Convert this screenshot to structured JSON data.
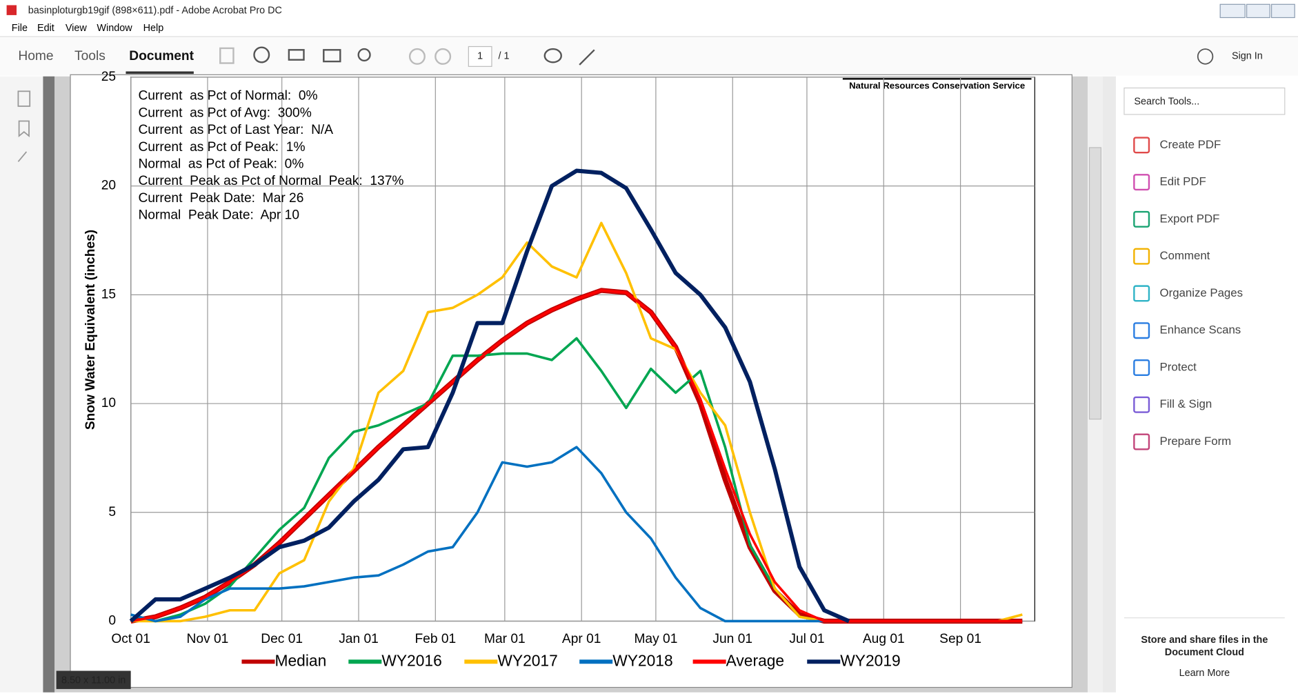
{
  "window": {
    "title": "basinploturgb19gif (898×611).pdf - Adobe Acrobat Pro DC",
    "menu": [
      "File",
      "Edit",
      "View",
      "Window",
      "Help"
    ],
    "tabs": [
      "Home",
      "Tools",
      "Document"
    ],
    "page_number": "1",
    "page_total": "/ 1",
    "sign_in": "Sign In",
    "search": "Search Tools...",
    "tools": [
      "Create PDF",
      "Edit PDF",
      "Export PDF",
      "Comment",
      "Organize Pages",
      "Enhance Scans",
      "Protect",
      "Fill & Sign",
      "Prepare Form"
    ],
    "cloud_text": [
      "Store and share files in the",
      "Document Cloud"
    ],
    "learn_more": "Learn More",
    "page_size": "8.50 x 11.00 in"
  },
  "chart_data": {
    "type": "line",
    "source": "Natural Resources Conservation Service",
    "y_label": "Snow Water Equivalent (inches)",
    "annotations": [
      "Current  as Pct of Normal:  0%",
      "Current  as Pct of Avg:  300%",
      "Current  as Pct of Last Year:  N/A",
      "Current  as Pct of Peak:  1%",
      "Normal  as Pct of Peak:  0%",
      "Current  Peak as Pct of Normal  Peak:  137%",
      "Current  Peak Date:  Mar 26",
      "Normal  Peak Date:  Apr 10"
    ],
    "x": [
      0,
      10,
      20,
      30,
      40,
      50,
      60,
      70,
      80,
      90,
      100,
      110,
      120,
      130,
      140,
      150,
      160,
      170,
      180,
      190,
      200,
      210,
      220,
      230,
      240,
      250,
      260,
      270,
      280,
      290,
      300,
      310,
      320,
      330,
      340,
      350,
      360
    ],
    "xlim": [
      0,
      365
    ],
    "xticks": [
      {
        "value": 0,
        "label": "Oct 01"
      },
      {
        "value": 31,
        "label": "Nov 01"
      },
      {
        "value": 61,
        "label": "Dec 01"
      },
      {
        "value": 92,
        "label": "Jan 01"
      },
      {
        "value": 123,
        "label": "Feb 01"
      },
      {
        "value": 151,
        "label": "Mar 01"
      },
      {
        "value": 182,
        "label": "Apr 01"
      },
      {
        "value": 212,
        "label": "May 01"
      },
      {
        "value": 243,
        "label": "Jun 01"
      },
      {
        "value": 273,
        "label": "Jul 01"
      },
      {
        "value": 304,
        "label": "Aug 01"
      },
      {
        "value": 335,
        "label": "Sep 01"
      }
    ],
    "ylim": [
      0,
      25
    ],
    "yticks": [
      0,
      5,
      10,
      15,
      20,
      25
    ],
    "grid": true,
    "series": [
      {
        "name": "Median",
        "color": "#c00000",
        "width": 6,
        "values": [
          0,
          0.2,
          0.6,
          1.1,
          1.8,
          2.6,
          3.6,
          4.7,
          5.8,
          6.9,
          8.0,
          9.0,
          10.0,
          11.0,
          12.0,
          12.9,
          13.7,
          14.3,
          14.8,
          15.2,
          15.1,
          14.2,
          12.6,
          10.0,
          6.5,
          3.4,
          1.4,
          0.3,
          0,
          0,
          0,
          0,
          0,
          0,
          0,
          0,
          0
        ]
      },
      {
        "name": "WY2016",
        "color": "#00a651",
        "width": 3,
        "values": [
          0.1,
          0,
          0.3,
          0.8,
          1.6,
          2.9,
          4.2,
          5.2,
          7.5,
          8.7,
          9.0,
          9.5,
          10.0,
          12.2,
          12.2,
          12.3,
          12.3,
          12.0,
          13.0,
          11.5,
          9.8,
          11.6,
          10.5,
          11.5,
          8.0,
          3.5,
          1.5,
          0.2,
          0,
          0,
          0,
          0,
          0,
          0,
          0,
          0,
          0
        ]
      },
      {
        "name": "WY2017",
        "color": "#ffc000",
        "width": 3,
        "values": [
          0,
          0,
          0,
          0.2,
          0.5,
          0.5,
          2.2,
          2.8,
          5.5,
          7.0,
          10.5,
          11.5,
          14.2,
          14.4,
          15.0,
          15.8,
          17.4,
          16.3,
          15.8,
          18.3,
          16.0,
          13.0,
          12.5,
          10.5,
          9.0,
          5.0,
          1.5,
          0.2,
          0,
          0,
          0,
          0,
          0,
          0,
          0,
          0,
          0.3
        ]
      },
      {
        "name": "WY2018",
        "color": "#0070c0",
        "width": 3,
        "values": [
          0.3,
          0,
          0.2,
          1.0,
          1.5,
          1.5,
          1.5,
          1.6,
          1.8,
          2.0,
          2.1,
          2.6,
          3.2,
          3.4,
          5.0,
          7.3,
          7.1,
          7.3,
          8.0,
          6.8,
          5.0,
          3.8,
          2.0,
          0.6,
          0,
          0,
          0,
          0,
          0,
          0,
          0,
          0,
          0,
          0,
          0,
          0,
          0
        ]
      },
      {
        "name": "Average",
        "color": "#ff0000",
        "width": 3,
        "values": [
          0,
          0.2,
          0.6,
          1.1,
          1.8,
          2.6,
          3.6,
          4.7,
          5.8,
          6.9,
          8.0,
          9.0,
          10.0,
          11.0,
          12.0,
          12.9,
          13.7,
          14.3,
          14.8,
          15.2,
          15.1,
          14.2,
          12.6,
          10.2,
          7.0,
          4.0,
          1.8,
          0.5,
          0,
          0,
          0,
          0,
          0,
          0,
          0,
          0,
          0
        ]
      },
      {
        "name": "WY2019",
        "color": "#002060",
        "width": 5,
        "values": [
          0,
          1.0,
          1.0,
          1.5,
          2.0,
          2.6,
          3.4,
          3.7,
          4.3,
          5.5,
          6.5,
          7.9,
          8.0,
          10.5,
          13.7,
          13.7,
          17.0,
          20.0,
          20.7,
          20.6,
          19.9,
          18.0,
          16.0,
          15.0,
          13.5,
          11.0,
          7.0,
          2.5,
          0.5,
          0,
          null,
          null,
          null,
          null,
          null,
          null,
          null
        ]
      }
    ]
  }
}
